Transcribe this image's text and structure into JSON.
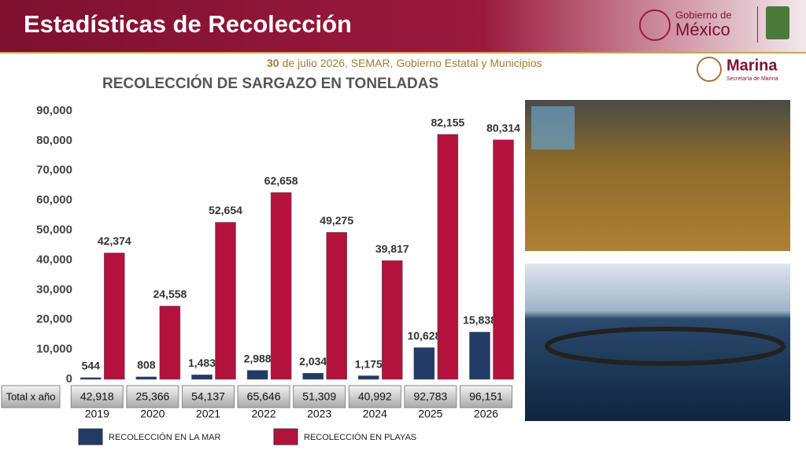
{
  "header": {
    "title": "Estadísticas de Recolección",
    "gov_line1": "Gobierno de",
    "gov_line2": "México",
    "marina": "Marina",
    "marina_sub": "Secretaría de Marina"
  },
  "source": {
    "day": "30",
    "text": "de julio 2026, SEMAR, Gobierno Estatal y Municipios"
  },
  "chart_data": {
    "type": "bar",
    "title": "RECOLECCIÓN DE SARGAZO EN TONELADAS",
    "categories": [
      "2019",
      "2020",
      "2021",
      "2022",
      "2023",
      "2024",
      "2025",
      "2026"
    ],
    "series": [
      {
        "name": "RECOLECCIÓN EN LA MAR",
        "color": "#213a68",
        "values": [
          544,
          808,
          1483,
          2988,
          2034,
          1175,
          10628,
          15838
        ],
        "value_labels": [
          "544",
          "808",
          "1,483",
          "2,988",
          "2,034",
          "1,175",
          "10,628",
          "15,838"
        ]
      },
      {
        "name": "RECOLECCIÓN EN PLAYAS",
        "color": "#b3123d",
        "values": [
          42374,
          24558,
          52654,
          62658,
          49275,
          39817,
          82155,
          80314
        ],
        "value_labels": [
          "42,374",
          "24,558",
          "52,654",
          "62,658",
          "49,275",
          "39,817",
          "82,155",
          "80,314"
        ]
      }
    ],
    "totals": {
      "label": "Total x año",
      "values": [
        42918,
        25366,
        54137,
        65646,
        51309,
        40992,
        92783,
        96151
      ],
      "value_labels": [
        "42,918",
        "25,366",
        "54,137",
        "65,646",
        "51,309",
        "40,992",
        "92,783",
        "96,151"
      ]
    },
    "ylim": [
      0,
      90000
    ],
    "yticks": [
      0,
      {
        "value": 10000,
        "label": "10,000"
      },
      {
        "value": 20000,
        "label": "20,000"
      },
      {
        "value": 30000,
        "label": "30,000"
      },
      {
        "value": 40000,
        "label": "40,000"
      },
      {
        "value": 50000,
        "label": "50,000"
      },
      {
        "value": 60000,
        "label": "60,000"
      },
      {
        "value": 70000,
        "label": "70,000"
      },
      {
        "value": 80000,
        "label": "80,000"
      },
      {
        "value": 90000,
        "label": "90,000"
      }
    ],
    "grid": false
  }
}
